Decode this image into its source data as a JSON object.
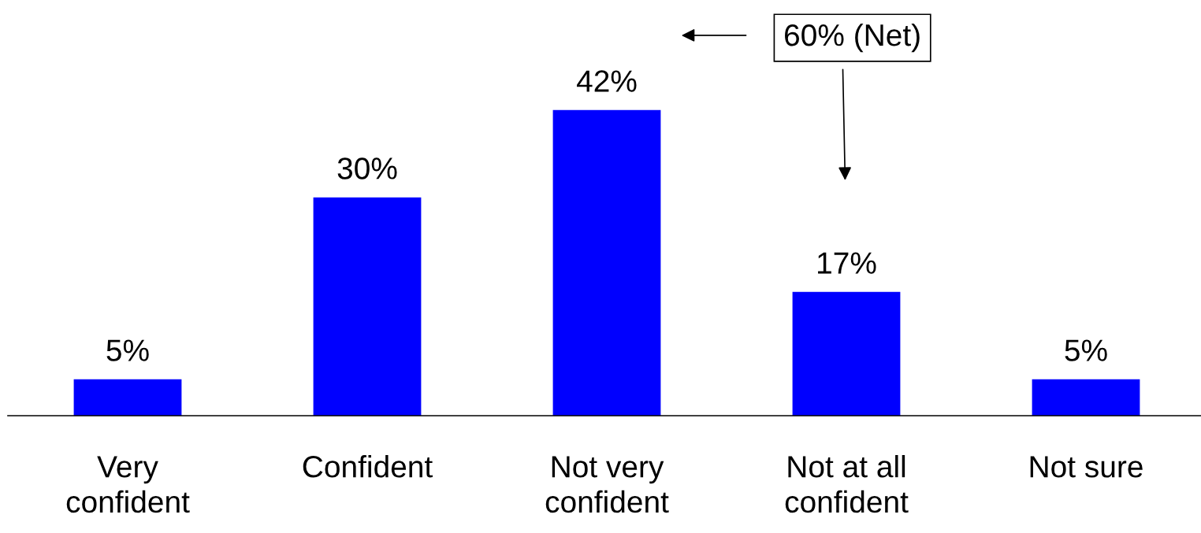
{
  "chart_data": {
    "type": "bar",
    "categories": [
      "Very\nconfident",
      "Confident",
      "Not very\nconfident",
      "Not at all\nconfident",
      "Not sure"
    ],
    "values": [
      5,
      30,
      42,
      17,
      5
    ],
    "color": "#0000ff",
    "value_labels": [
      "5%",
      "30%",
      "42%",
      "17%",
      "5%"
    ],
    "annotations": [
      "60% (Net)"
    ]
  }
}
